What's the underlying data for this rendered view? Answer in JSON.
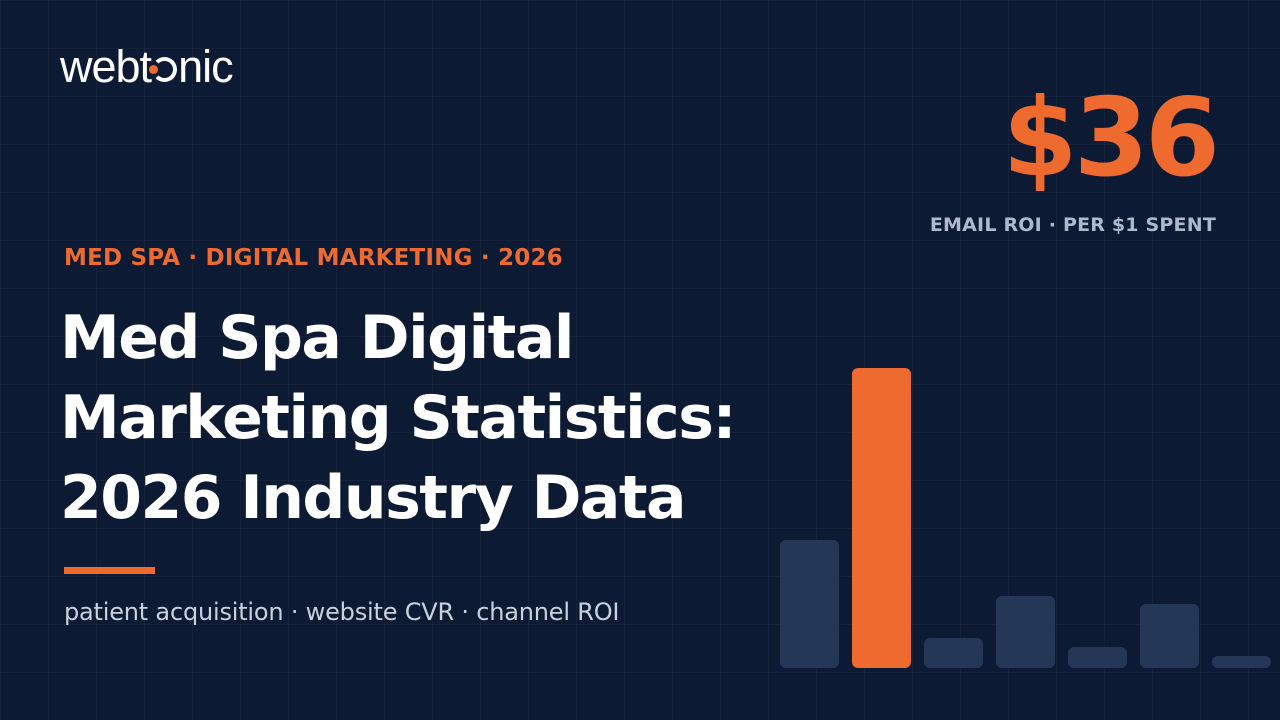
{
  "brand": {
    "name_before": "webt",
    "name_after": "nic"
  },
  "hero_stat": {
    "value": "$36",
    "caption": "EMAIL ROI · PER $1 SPENT"
  },
  "eyebrow": "MED SPA · DIGITAL MARKETING · 2026",
  "headline": {
    "line1": "Med Spa Digital",
    "line2": "Marketing Statistics:",
    "line3": "2026 Industry Data"
  },
  "subline": "patient acquisition · website CVR · channel ROI",
  "colors": {
    "background": "#0c1a33",
    "accent": "#ee6a2f",
    "bar_muted": "#243757"
  },
  "decor_bars": {
    "max": 300,
    "values": [
      128,
      300,
      30,
      72,
      21,
      64,
      12
    ],
    "highlight_index": 1
  }
}
